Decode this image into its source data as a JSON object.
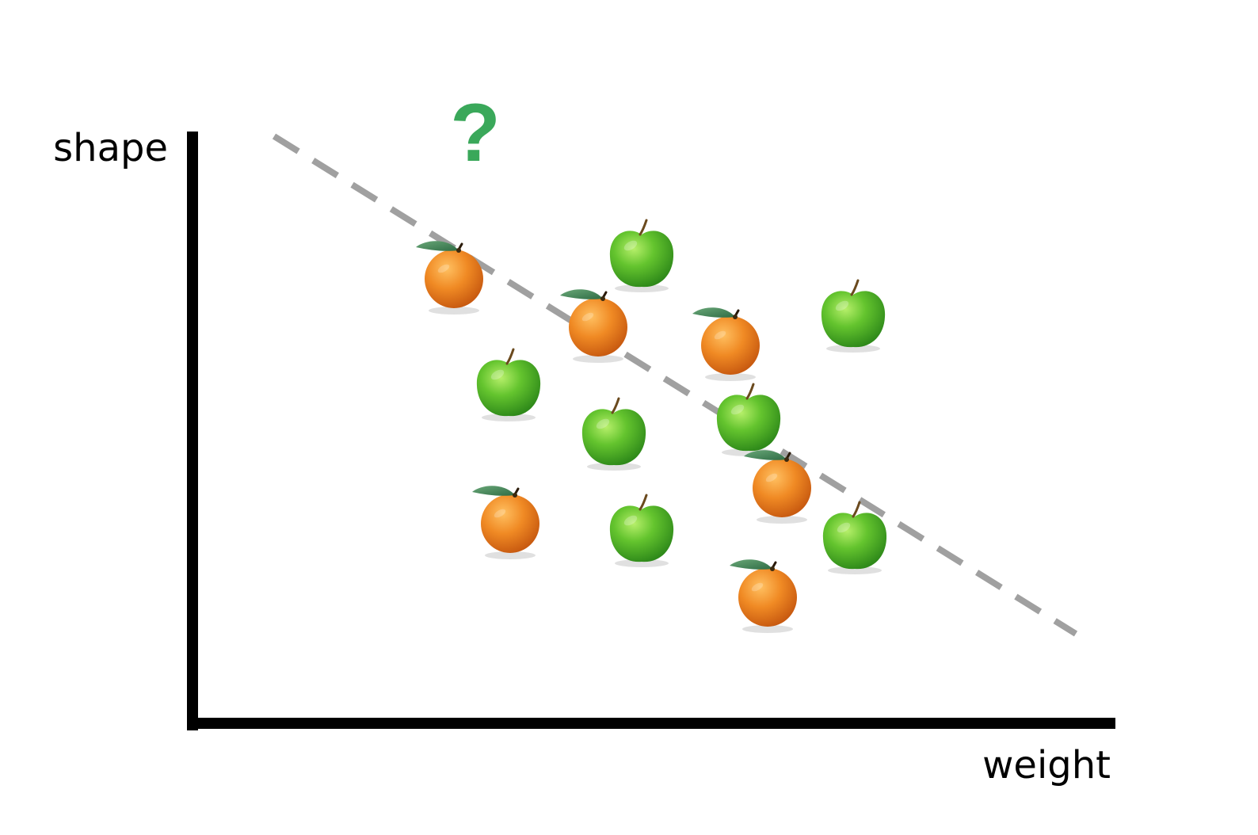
{
  "axes": {
    "y_label": "shape",
    "x_label": "weight"
  },
  "unknown_marker": {
    "text": "?",
    "color": "#3aa85a"
  },
  "colors": {
    "axis": "#000000",
    "decision_boundary": "#a0a0a0",
    "apple": "#5cc22c",
    "orange": "#ec8a22"
  },
  "chart_data": {
    "type": "scatter",
    "xlabel": "weight",
    "ylabel": "shape",
    "markers": [
      "apple-icon",
      "orange-icon"
    ]
  }
}
